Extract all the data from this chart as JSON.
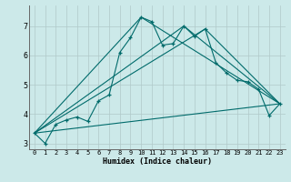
{
  "xlabel": "Humidex (Indice chaleur)",
  "background_color": "#cce9e9",
  "grid_color": "#b0c8c8",
  "line_color": "#006b6b",
  "xlim": [
    -0.5,
    23.5
  ],
  "ylim": [
    2.8,
    7.7
  ],
  "xticks": [
    0,
    1,
    2,
    3,
    4,
    5,
    6,
    7,
    8,
    9,
    10,
    11,
    12,
    13,
    14,
    15,
    16,
    17,
    18,
    19,
    20,
    21,
    22,
    23
  ],
  "yticks": [
    3,
    4,
    5,
    6,
    7
  ],
  "main_x": [
    0,
    1,
    2,
    3,
    4,
    5,
    6,
    7,
    8,
    9,
    10,
    11,
    12,
    13,
    14,
    15,
    16,
    17,
    18,
    19,
    20,
    21,
    22,
    23
  ],
  "main_y": [
    3.35,
    3.0,
    3.65,
    3.8,
    3.9,
    3.75,
    4.45,
    4.65,
    6.1,
    6.6,
    7.3,
    7.15,
    6.35,
    6.4,
    7.0,
    6.65,
    6.9,
    5.75,
    5.4,
    5.15,
    5.1,
    4.85,
    3.95,
    4.35
  ],
  "trend1_x": [
    0,
    23
  ],
  "trend1_y": [
    3.35,
    4.35
  ],
  "trend2_x": [
    0,
    10,
    23
  ],
  "trend2_y": [
    3.35,
    7.3,
    4.35
  ],
  "trend3_x": [
    0,
    14,
    23
  ],
  "trend3_y": [
    3.35,
    7.0,
    4.35
  ],
  "trend4_x": [
    0,
    16,
    23
  ],
  "trend4_y": [
    3.35,
    6.9,
    4.35
  ]
}
